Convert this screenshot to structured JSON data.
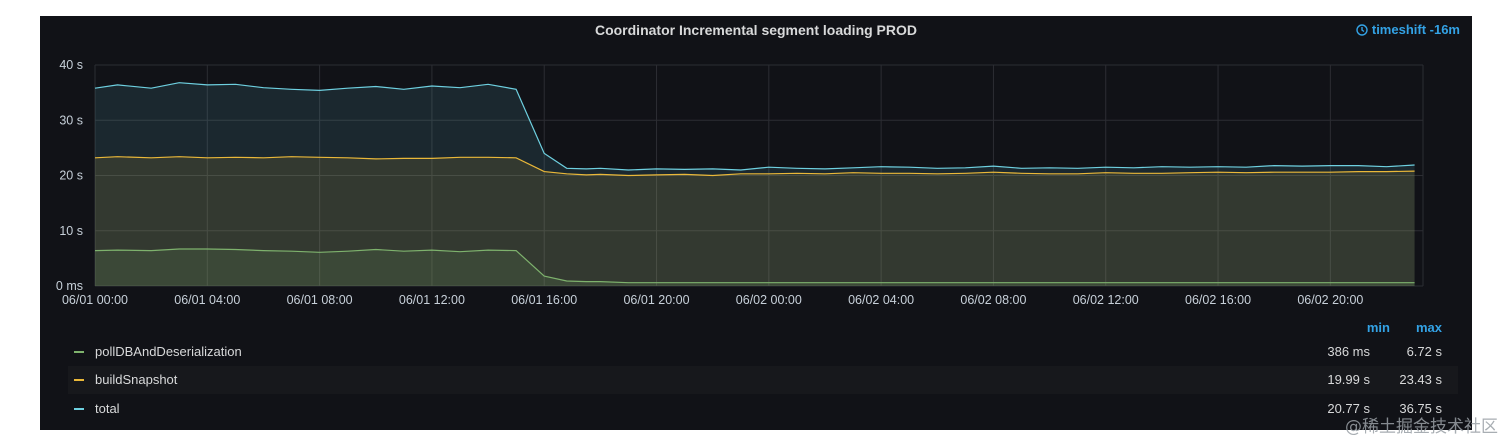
{
  "panel": {
    "title": "Coordinator Incremental segment loading PROD",
    "timeshift": "timeshift -16m",
    "timeshift_icon": "clock-icon",
    "accent_color": "#33a2e5"
  },
  "chart_data": {
    "type": "area",
    "title": "Coordinator Incremental segment loading PROD",
    "x_unit": "hours since 06/01 00:00",
    "x_tick_values": [
      0,
      4,
      8,
      12,
      16,
      20,
      24,
      28,
      32,
      36,
      40,
      44
    ],
    "x_tick_labels": [
      "06/01 00:00",
      "06/01 04:00",
      "06/01 08:00",
      "06/01 12:00",
      "06/01 16:00",
      "06/01 20:00",
      "06/02 00:00",
      "06/02 04:00",
      "06/02 08:00",
      "06/02 12:00",
      "06/02 16:00",
      "06/02 20:00"
    ],
    "xlim": [
      0,
      47.3
    ],
    "y_tick_values": [
      0,
      10,
      20,
      30,
      40
    ],
    "y_tick_labels": [
      "0 ms",
      "10 s",
      "20 s",
      "30 s",
      "40 s"
    ],
    "ylim": [
      0,
      40
    ],
    "y_unit": "seconds",
    "grid": true,
    "legend_placement": "bottom",
    "x": [
      0,
      0.8,
      2,
      3,
      4,
      5,
      6,
      7,
      8,
      9,
      10,
      11,
      12,
      13,
      14,
      15,
      16,
      16.8,
      17.5,
      18,
      19,
      20,
      21,
      22,
      23,
      24,
      25,
      26,
      27,
      28,
      29,
      30,
      31,
      32,
      33,
      34,
      35,
      36,
      37,
      38,
      39,
      40,
      41,
      42,
      43,
      44,
      45,
      46,
      47
    ],
    "series": [
      {
        "name": "pollDBAndDeserialization",
        "color": "#7eb26d",
        "values": [
          6.4,
          6.5,
          6.4,
          6.7,
          6.7,
          6.6,
          6.4,
          6.3,
          6.1,
          6.3,
          6.6,
          6.3,
          6.5,
          6.2,
          6.5,
          6.4,
          1.8,
          0.9,
          0.8,
          0.8,
          0.6,
          0.6,
          0.6,
          0.6,
          0.6,
          0.6,
          0.6,
          0.6,
          0.6,
          0.6,
          0.6,
          0.6,
          0.6,
          0.6,
          0.6,
          0.6,
          0.6,
          0.6,
          0.6,
          0.6,
          0.6,
          0.6,
          0.6,
          0.6,
          0.6,
          0.6,
          0.6,
          0.6,
          0.6
        ],
        "min": "386 ms",
        "max": "6.72 s"
      },
      {
        "name": "buildSnapshot",
        "color": "#eab839",
        "values": [
          23.2,
          23.4,
          23.2,
          23.4,
          23.2,
          23.3,
          23.2,
          23.4,
          23.3,
          23.2,
          23.0,
          23.1,
          23.1,
          23.3,
          23.3,
          23.2,
          20.7,
          20.3,
          20.1,
          20.2,
          20.0,
          20.1,
          20.2,
          20.0,
          20.3,
          20.3,
          20.4,
          20.3,
          20.5,
          20.4,
          20.4,
          20.3,
          20.4,
          20.6,
          20.4,
          20.3,
          20.3,
          20.5,
          20.4,
          20.4,
          20.5,
          20.6,
          20.5,
          20.6,
          20.6,
          20.6,
          20.7,
          20.7,
          20.8
        ],
        "min": "19.99 s",
        "max": "23.43 s"
      },
      {
        "name": "total",
        "color": "#6ed0e0",
        "values": [
          35.8,
          36.4,
          35.8,
          36.8,
          36.4,
          36.5,
          35.9,
          35.6,
          35.4,
          35.8,
          36.1,
          35.6,
          36.2,
          35.9,
          36.5,
          35.6,
          24.0,
          21.3,
          21.2,
          21.3,
          21.0,
          21.2,
          21.1,
          21.2,
          21.0,
          21.5,
          21.3,
          21.2,
          21.4,
          21.6,
          21.5,
          21.3,
          21.4,
          21.7,
          21.3,
          21.4,
          21.3,
          21.5,
          21.4,
          21.6,
          21.5,
          21.6,
          21.5,
          21.8,
          21.7,
          21.8,
          21.8,
          21.6,
          21.9
        ],
        "min": "20.77 s",
        "max": "36.75 s"
      }
    ]
  },
  "legend": {
    "min_header": "min",
    "max_header": "max"
  },
  "watermark": "@稀土掘金技术社区"
}
